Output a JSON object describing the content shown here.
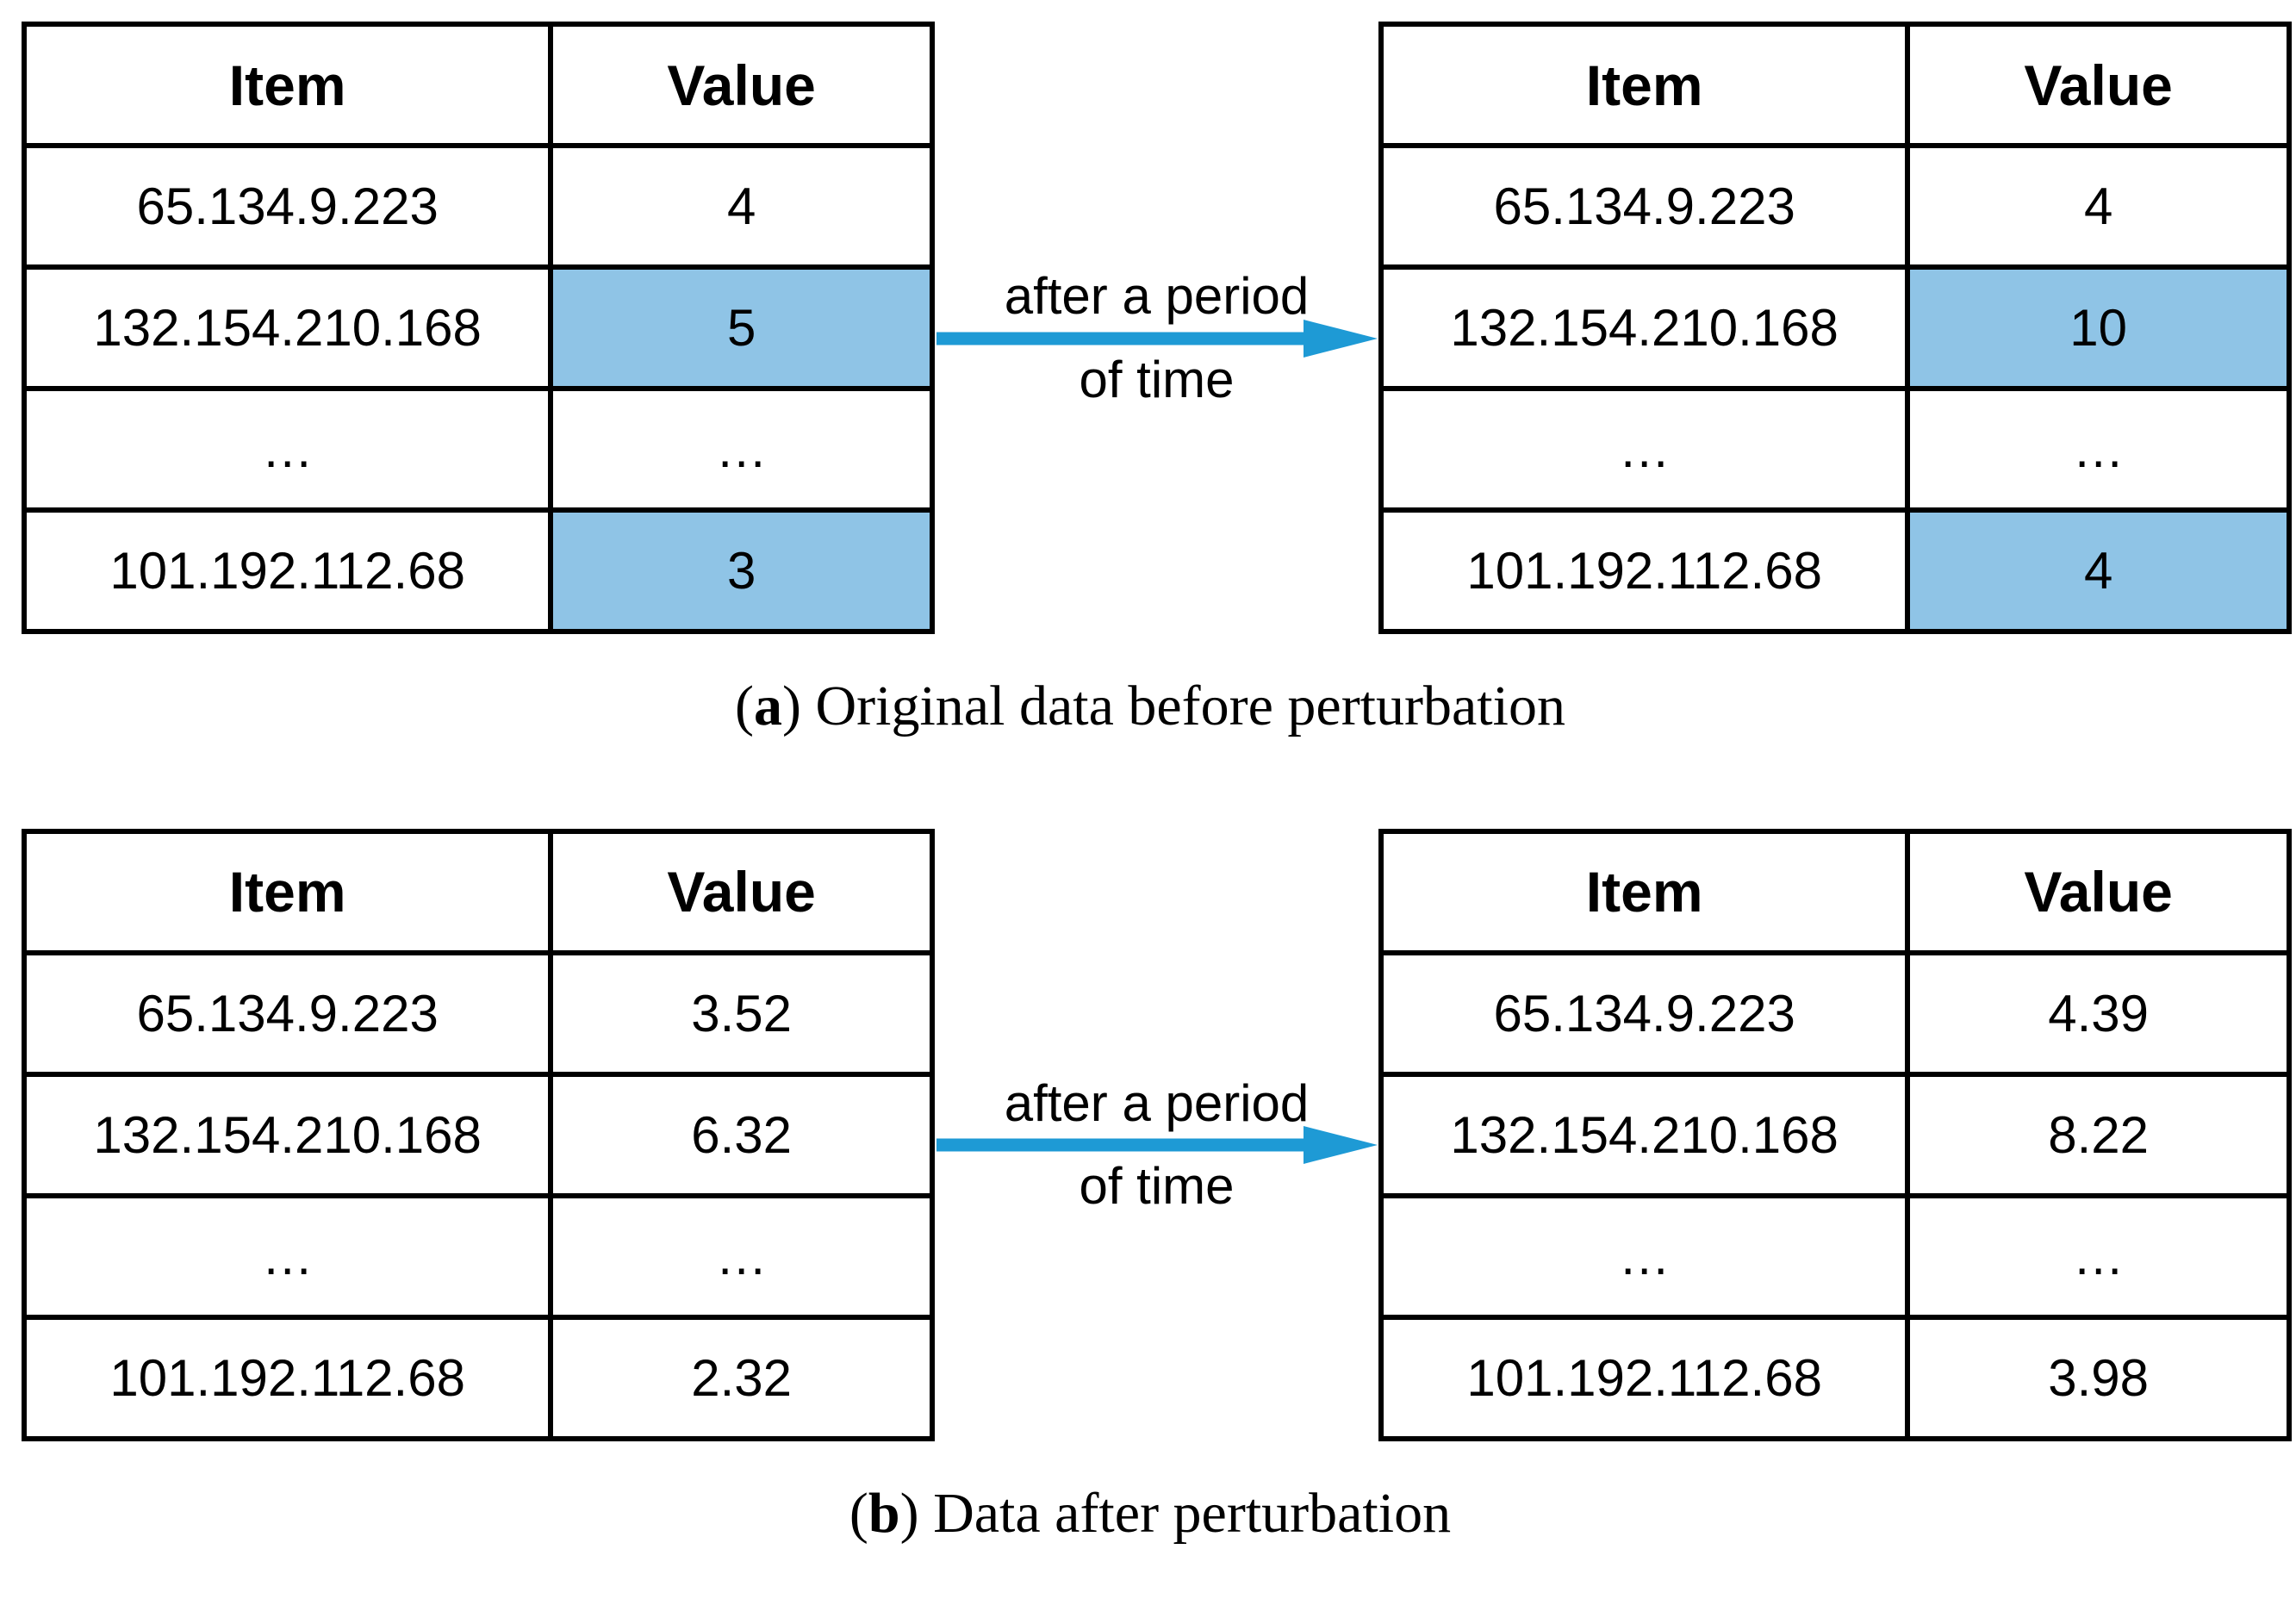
{
  "colors": {
    "highlight": "#8FC4E6",
    "arrow": "#1E9AD5",
    "border": "#000000"
  },
  "table_headers": {
    "item": "Item",
    "value": "Value"
  },
  "arrow_label": {
    "line1": "after a period",
    "line2": "of time"
  },
  "panels": [
    {
      "caption": {
        "prefix": "(",
        "letter": "a",
        "suffix": ") Original data before perturbation"
      },
      "left_table": {
        "rows": [
          {
            "item": "65.134.9.223",
            "value": "4",
            "highlight": false
          },
          {
            "item": "132.154.210.168",
            "value": "5",
            "highlight": true
          },
          {
            "item": "…",
            "value": "…",
            "highlight": false
          },
          {
            "item": "101.192.112.68",
            "value": "3",
            "highlight": true
          }
        ]
      },
      "right_table": {
        "rows": [
          {
            "item": "65.134.9.223",
            "value": "4",
            "highlight": false
          },
          {
            "item": "132.154.210.168",
            "value": "10",
            "highlight": true
          },
          {
            "item": "…",
            "value": "…",
            "highlight": false
          },
          {
            "item": "101.192.112.68",
            "value": "4",
            "highlight": true
          }
        ]
      }
    },
    {
      "caption": {
        "prefix": "(",
        "letter": "b",
        "suffix": ") Data after perturbation"
      },
      "left_table": {
        "rows": [
          {
            "item": "65.134.9.223",
            "value": "3.52",
            "highlight": false
          },
          {
            "item": "132.154.210.168",
            "value": "6.32",
            "highlight": false
          },
          {
            "item": "…",
            "value": "…",
            "highlight": false
          },
          {
            "item": "101.192.112.68",
            "value": "2.32",
            "highlight": false
          }
        ]
      },
      "right_table": {
        "rows": [
          {
            "item": "65.134.9.223",
            "value": "4.39",
            "highlight": false
          },
          {
            "item": "132.154.210.168",
            "value": "8.22",
            "highlight": false
          },
          {
            "item": "…",
            "value": "…",
            "highlight": false
          },
          {
            "item": "101.192.112.68",
            "value": "3.98",
            "highlight": false
          }
        ]
      }
    }
  ]
}
